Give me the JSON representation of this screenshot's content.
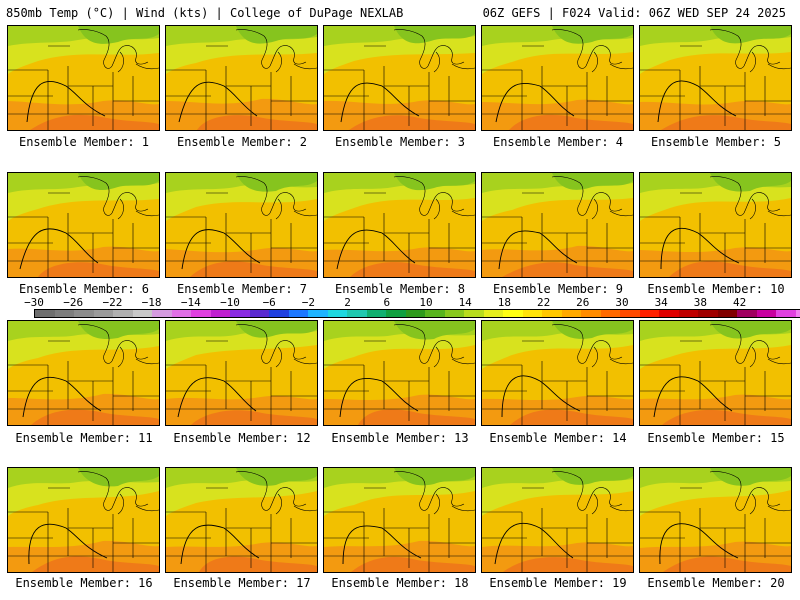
{
  "header": {
    "left": "850mb Temp (°C) | Wind (kts) | College of DuPage NEXLAB",
    "right": "06Z GEFS | F024 Valid: 06Z WED SEP 24 2025"
  },
  "panels": [
    "Ensemble Member: 1",
    "Ensemble Member: 2",
    "Ensemble Member: 3",
    "Ensemble Member: 4",
    "Ensemble Member: 5",
    "Ensemble Member: 6",
    "Ensemble Member: 7",
    "Ensemble Member: 8",
    "Ensemble Member: 9",
    "Ensemble Member: 10",
    "Ensemble Member: 11",
    "Ensemble Member: 12",
    "Ensemble Member: 13",
    "Ensemble Member: 14",
    "Ensemble Member: 15",
    "Ensemble Member: 16",
    "Ensemble Member: 17",
    "Ensemble Member: 18",
    "Ensemble Member: 19",
    "Ensemble Member: 20"
  ],
  "colorbar": {
    "ticks": [
      "−30",
      "−26",
      "−22",
      "−18",
      "−14",
      "−10",
      "−6",
      "−2",
      "2",
      "6",
      "10",
      "14",
      "18",
      "22",
      "26",
      "30",
      "34",
      "38",
      "42"
    ],
    "colors": [
      "#6e6e6e",
      "#7d7d7d",
      "#8c8c8c",
      "#9b9b9b",
      "#b0b0b0",
      "#c8c8c8",
      "#d59be0",
      "#e070e6",
      "#e040e0",
      "#c020d0",
      "#8a2be2",
      "#5a2ad0",
      "#2040e0",
      "#1e78ff",
      "#20b4ff",
      "#20d8e0",
      "#20c8b0",
      "#10b070",
      "#10a040",
      "#2e9a1c",
      "#58b41e",
      "#88c81e",
      "#b8dc1e",
      "#e6ee1e",
      "#ffff14",
      "#ffe40a",
      "#ffc800",
      "#ffaa00",
      "#ff8c00",
      "#ff6a00",
      "#ff4a00",
      "#ff2000",
      "#e00000",
      "#c00000",
      "#a00000",
      "#800000",
      "#a00060",
      "#c800a0",
      "#e040e0",
      "#f080f0",
      "#ffc8ff"
    ]
  },
  "legend_colors": {
    "cool": "#a8d21e",
    "mild": "#d8e21e",
    "warm": "#f2c000",
    "hot": "#f39a10",
    "hotter": "#ef7a18",
    "green": "#86c41e",
    "boundary": "#000000"
  }
}
